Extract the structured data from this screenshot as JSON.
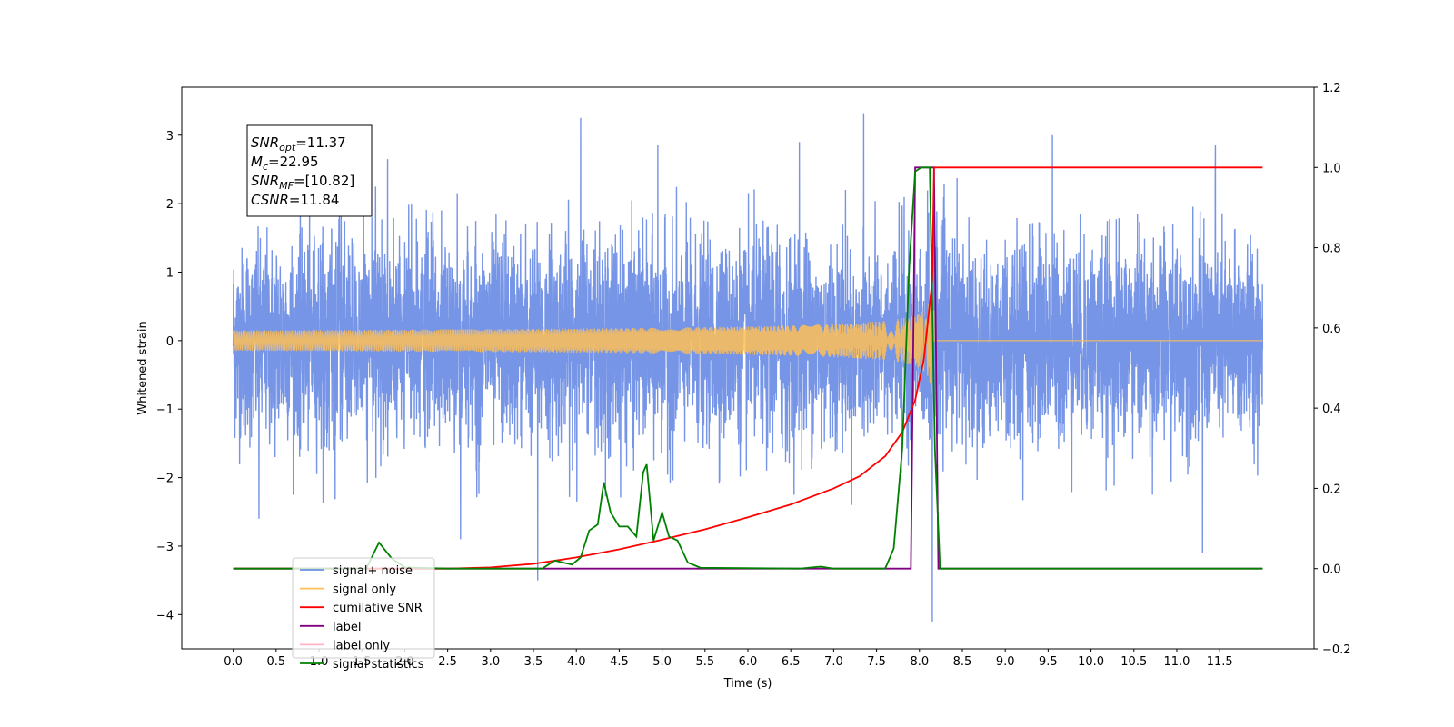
{
  "chart_data": {
    "type": "line",
    "xlabel": "Time (s)",
    "ylabel": "Whitened strain",
    "xlim": [
      -0.6,
      12.6
    ],
    "ylim": [
      -4.5,
      3.7
    ],
    "ylim_right": [
      -0.2,
      1.2
    ],
    "x_ticks": [
      "0.0",
      "0.5",
      "1.0",
      "1.5",
      "2.0",
      "2.5",
      "3.0",
      "3.5",
      "4.0",
      "4.5",
      "5.0",
      "5.5",
      "6.0",
      "6.5",
      "7.0",
      "7.5",
      "8.0",
      "8.5",
      "9.0",
      "9.5",
      "10.0",
      "10.5",
      "11.0",
      "11.5"
    ],
    "y_ticks": [
      "3",
      "2",
      "1",
      "0",
      "−1",
      "−2",
      "−3",
      "−4"
    ],
    "y_ticks_right": [
      "1.2",
      "1.0",
      "0.8",
      "0.6",
      "0.4",
      "0.2",
      "0.0",
      "−0.2"
    ],
    "legend": {
      "placement": "lower-left",
      "entries": [
        "signal+ noise",
        "signal only",
        "cumilative SNR",
        "label",
        "label only",
        "signal statistics"
      ]
    },
    "annotation": {
      "lines": [
        {
          "italic": "SNR",
          "sub": "opt",
          "rest": "=11.37"
        },
        {
          "italic": "M",
          "sub": "c",
          "rest": "=22.95"
        },
        {
          "italic": "SNR",
          "sub": "MF",
          "rest": "=[10.82]"
        },
        {
          "italic": "CSNR",
          "sub": "",
          "rest": "=11.84"
        }
      ]
    },
    "colors": {
      "signal_noise": "#6f8fe6",
      "signal_only": "#ffbf55",
      "cumulative_snr": "#ff0000",
      "label": "#800080",
      "label_only": "#ffb6c1",
      "signal_statistics": "#008000"
    },
    "series": [
      {
        "name": "signal+ noise",
        "axis": "left",
        "x_range": [
          0.0,
          12.0
        ],
        "noise_std": 0.72,
        "peaks": [
          {
            "x": 4.05,
            "y": 3.25
          },
          {
            "x": 7.35,
            "y": 3.32
          },
          {
            "x": 9.55,
            "y": 3.0
          },
          {
            "x": 1.8,
            "y": 2.65
          },
          {
            "x": 4.95,
            "y": 2.85
          },
          {
            "x": 6.6,
            "y": 2.9
          },
          {
            "x": 11.45,
            "y": 2.85
          },
          {
            "x": 8.15,
            "y": -4.1
          },
          {
            "x": 3.55,
            "y": -3.5
          },
          {
            "x": 11.3,
            "y": -3.1
          },
          {
            "x": 0.3,
            "y": -2.6
          },
          {
            "x": 2.65,
            "y": -2.9
          }
        ]
      },
      {
        "name": "signal only",
        "axis": "left",
        "chirp": {
          "t_start": 0.0,
          "t_merge": 8.15,
          "t_end": 12.0,
          "peak_amplitude": 1.0
        }
      },
      {
        "name": "cumilative SNR",
        "axis": "right",
        "x": [
          0.0,
          2.5,
          3.0,
          3.5,
          4.0,
          4.5,
          5.0,
          5.5,
          6.0,
          6.5,
          7.0,
          7.3,
          7.6,
          7.8,
          7.95,
          8.05,
          8.15,
          8.17,
          12.0
        ],
        "y": [
          0.0,
          0.0,
          0.003,
          0.012,
          0.028,
          0.048,
          0.072,
          0.098,
          0.128,
          0.16,
          0.2,
          0.23,
          0.28,
          0.34,
          0.42,
          0.52,
          0.72,
          1.0,
          1.0
        ]
      },
      {
        "name": "label",
        "axis": "right",
        "x": [
          0.0,
          7.9,
          7.95,
          8.17,
          8.22,
          12.0
        ],
        "y": [
          0.0,
          0.0,
          1.0,
          1.0,
          0.0,
          0.0
        ]
      },
      {
        "name": "signal statistics",
        "axis": "right",
        "x": [
          0.0,
          1.55,
          1.7,
          1.85,
          2.0,
          2.5,
          3.6,
          3.75,
          3.85,
          3.95,
          4.05,
          4.15,
          4.25,
          4.32,
          4.4,
          4.5,
          4.6,
          4.7,
          4.78,
          4.82,
          4.9,
          5.0,
          5.08,
          5.18,
          5.3,
          5.45,
          6.6,
          6.85,
          7.0,
          7.6,
          7.7,
          7.8,
          7.88,
          7.95,
          8.02,
          8.08,
          8.12,
          8.18,
          8.24,
          12.0
        ],
        "y": [
          0.0,
          0.0,
          0.065,
          0.025,
          0.003,
          0.0,
          0.0,
          0.02,
          0.015,
          0.01,
          0.028,
          0.095,
          0.11,
          0.215,
          0.14,
          0.105,
          0.105,
          0.08,
          0.24,
          0.26,
          0.07,
          0.14,
          0.08,
          0.07,
          0.015,
          0.002,
          0.0,
          0.005,
          0.0,
          0.0,
          0.05,
          0.3,
          0.75,
          0.99,
          1.0,
          1.0,
          1.0,
          0.3,
          0.0,
          0.0
        ]
      }
    ]
  }
}
